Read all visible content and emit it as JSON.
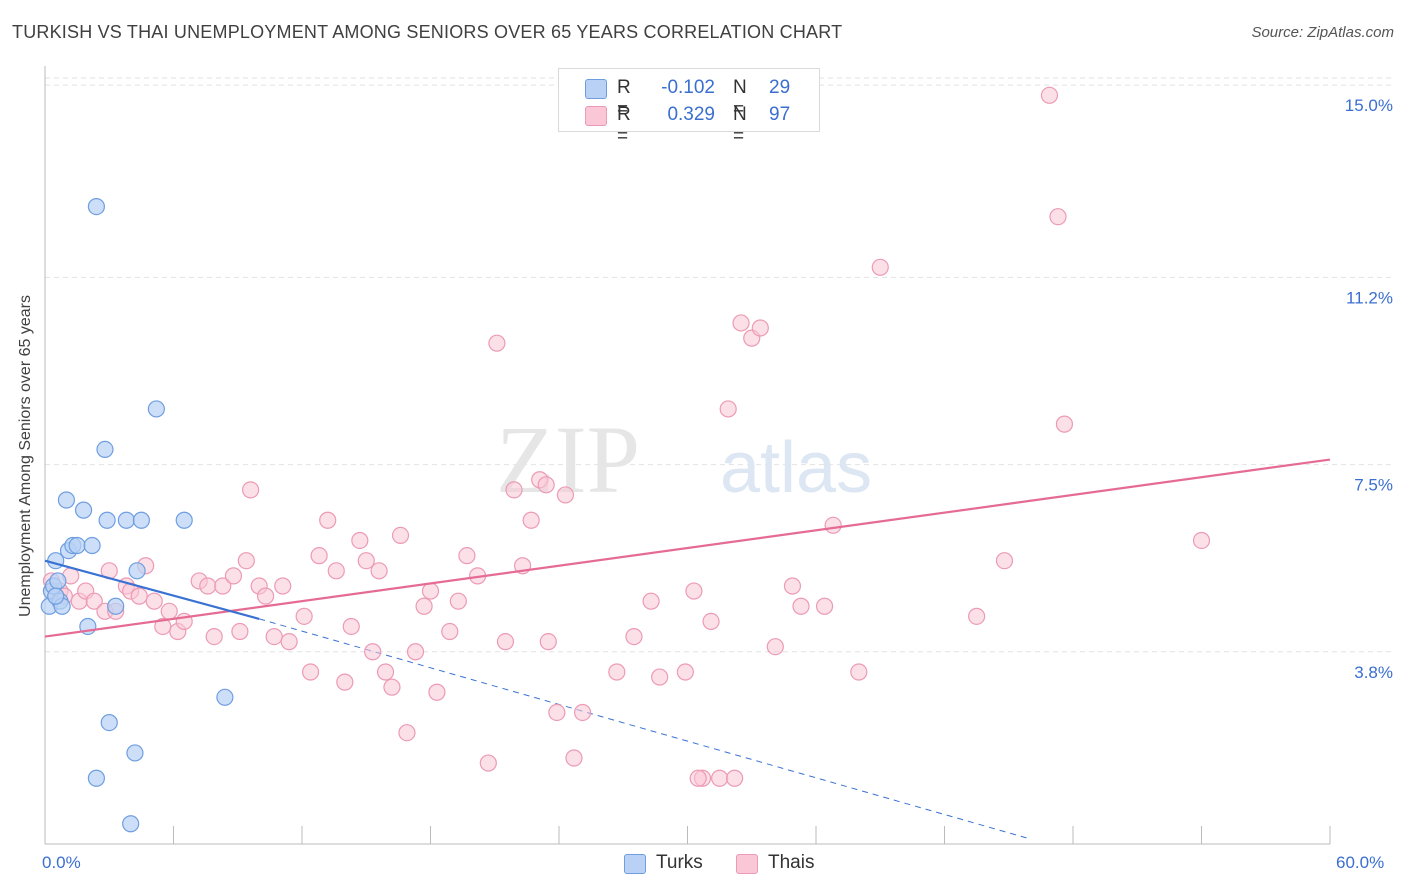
{
  "title": "TURKISH VS THAI UNEMPLOYMENT AMONG SENIORS OVER 65 YEARS CORRELATION CHART",
  "source": "Source: ZipAtlas.com",
  "watermark": {
    "zip": "ZIP",
    "atlas": "atlas"
  },
  "colors": {
    "turks_fill": "#b8d1f5",
    "turks_stroke": "#6f9ee0",
    "turks_line": "#3a72d4",
    "thais_fill": "#f9c7d6",
    "thais_stroke": "#ec9ab5",
    "thais_line": "#e56b94",
    "axis_label": "#3a6fd0",
    "grid": "#e2e2e2"
  },
  "legend": {
    "rows": [
      {
        "r_label": "R =",
        "r_value": "-0.102",
        "n_label": "N =",
        "n_value": "29"
      },
      {
        "r_label": "R =",
        "r_value": "0.329",
        "n_label": "N =",
        "n_value": "97"
      }
    ]
  },
  "bottom_legend": {
    "turks": "Turks",
    "thais": "Thais"
  },
  "x_axis": {
    "min_label": "0.0%",
    "max_label": "60.0%"
  },
  "chart_data": {
    "type": "scatter",
    "title": "TURKISH VS THAI UNEMPLOYMENT AMONG SENIORS OVER 65 YEARS CORRELATION CHART",
    "xlabel": "",
    "ylabel": "Unemployment Among Seniors over 65 years",
    "xlim": [
      0,
      60
    ],
    "ylim": [
      0,
      15.3
    ],
    "y_ticks": [
      {
        "value": 3.8,
        "label": "3.8%"
      },
      {
        "value": 7.5,
        "label": "7.5%"
      },
      {
        "value": 11.2,
        "label": "11.2%"
      },
      {
        "value": 15.0,
        "label": "15.0%"
      }
    ],
    "x_tick_values": [
      0,
      6,
      12,
      18,
      24,
      30,
      36,
      42,
      48,
      54,
      60
    ],
    "series": [
      {
        "name": "Turks",
        "points": [
          [
            0.2,
            4.7
          ],
          [
            0.3,
            5.0
          ],
          [
            0.4,
            5.1
          ],
          [
            0.5,
            5.6
          ],
          [
            0.6,
            5.2
          ],
          [
            0.7,
            4.8
          ],
          [
            0.8,
            4.7
          ],
          [
            1.0,
            6.8
          ],
          [
            1.1,
            5.8
          ],
          [
            1.3,
            5.9
          ],
          [
            1.5,
            5.9
          ],
          [
            1.8,
            6.6
          ],
          [
            2.0,
            4.3
          ],
          [
            2.2,
            5.9
          ],
          [
            2.4,
            12.6
          ],
          [
            2.8,
            7.8
          ],
          [
            2.9,
            6.4
          ],
          [
            3.0,
            2.4
          ],
          [
            3.3,
            4.7
          ],
          [
            3.8,
            6.4
          ],
          [
            4.0,
            0.4
          ],
          [
            4.2,
            1.8
          ],
          [
            4.3,
            5.4
          ],
          [
            4.5,
            6.4
          ],
          [
            5.2,
            8.6
          ],
          [
            6.5,
            6.4
          ],
          [
            8.4,
            2.9
          ],
          [
            2.4,
            1.3
          ],
          [
            0.5,
            4.9
          ]
        ],
        "trend": {
          "x0": 0,
          "y0": 5.6,
          "x1": 10,
          "y1": 4.45,
          "dashed_to_x": 46,
          "dashed_to_y": 0.1
        }
      },
      {
        "name": "Thais",
        "points": [
          [
            0.3,
            5.2
          ],
          [
            0.5,
            4.9
          ],
          [
            0.7,
            5.0
          ],
          [
            0.9,
            4.9
          ],
          [
            1.2,
            5.3
          ],
          [
            1.6,
            4.8
          ],
          [
            1.9,
            5.0
          ],
          [
            2.3,
            4.8
          ],
          [
            2.8,
            4.6
          ],
          [
            3.0,
            5.4
          ],
          [
            3.3,
            4.6
          ],
          [
            3.8,
            5.1
          ],
          [
            4.0,
            5.0
          ],
          [
            4.4,
            4.9
          ],
          [
            4.7,
            5.5
          ],
          [
            5.1,
            4.8
          ],
          [
            5.5,
            4.3
          ],
          [
            5.8,
            4.6
          ],
          [
            6.2,
            4.2
          ],
          [
            6.5,
            4.4
          ],
          [
            7.2,
            5.2
          ],
          [
            7.6,
            5.1
          ],
          [
            7.9,
            4.1
          ],
          [
            8.3,
            5.1
          ],
          [
            8.8,
            5.3
          ],
          [
            9.1,
            4.2
          ],
          [
            9.4,
            5.6
          ],
          [
            9.6,
            7.0
          ],
          [
            10.0,
            5.1
          ],
          [
            10.3,
            4.9
          ],
          [
            10.7,
            4.1
          ],
          [
            11.1,
            5.1
          ],
          [
            11.4,
            4.0
          ],
          [
            12.1,
            4.5
          ],
          [
            12.4,
            3.4
          ],
          [
            12.8,
            5.7
          ],
          [
            13.2,
            6.4
          ],
          [
            13.6,
            5.4
          ],
          [
            14.0,
            3.2
          ],
          [
            14.3,
            4.3
          ],
          [
            14.7,
            6.0
          ],
          [
            15.0,
            5.6
          ],
          [
            15.3,
            3.8
          ],
          [
            15.6,
            5.4
          ],
          [
            15.9,
            3.4
          ],
          [
            16.2,
            3.1
          ],
          [
            16.6,
            6.1
          ],
          [
            16.9,
            2.2
          ],
          [
            17.3,
            3.8
          ],
          [
            17.7,
            4.7
          ],
          [
            18.0,
            5.0
          ],
          [
            18.3,
            3.0
          ],
          [
            18.9,
            4.2
          ],
          [
            19.3,
            4.8
          ],
          [
            19.7,
            5.7
          ],
          [
            20.2,
            5.3
          ],
          [
            20.7,
            1.6
          ],
          [
            21.1,
            9.9
          ],
          [
            21.5,
            4.0
          ],
          [
            21.9,
            7.0
          ],
          [
            22.3,
            5.5
          ],
          [
            22.7,
            6.4
          ],
          [
            23.1,
            7.2
          ],
          [
            23.5,
            4.0
          ],
          [
            23.9,
            2.6
          ],
          [
            24.3,
            6.9
          ],
          [
            24.7,
            1.7
          ],
          [
            25.1,
            2.6
          ],
          [
            26.7,
            3.4
          ],
          [
            27.5,
            4.1
          ],
          [
            28.3,
            4.8
          ],
          [
            28.7,
            3.3
          ],
          [
            29.9,
            3.4
          ],
          [
            30.3,
            5.0
          ],
          [
            30.7,
            1.3
          ],
          [
            31.1,
            4.4
          ],
          [
            31.5,
            1.3
          ],
          [
            31.9,
            8.6
          ],
          [
            32.2,
            1.3
          ],
          [
            32.5,
            10.3
          ],
          [
            33.0,
            10.0
          ],
          [
            33.4,
            10.2
          ],
          [
            34.1,
            3.9
          ],
          [
            34.9,
            5.1
          ],
          [
            35.3,
            4.7
          ],
          [
            36.4,
            4.7
          ],
          [
            36.8,
            6.3
          ],
          [
            38.0,
            3.4
          ],
          [
            39.0,
            11.4
          ],
          [
            43.5,
            4.5
          ],
          [
            44.8,
            5.6
          ],
          [
            46.9,
            14.8
          ],
          [
            47.3,
            12.4
          ],
          [
            47.6,
            8.3
          ],
          [
            54.0,
            6.0
          ],
          [
            23.4,
            7.1
          ],
          [
            30.5,
            1.3
          ]
        ],
        "trend": {
          "x0": 0,
          "y0": 4.1,
          "x1": 60,
          "y1": 7.6
        }
      }
    ]
  }
}
